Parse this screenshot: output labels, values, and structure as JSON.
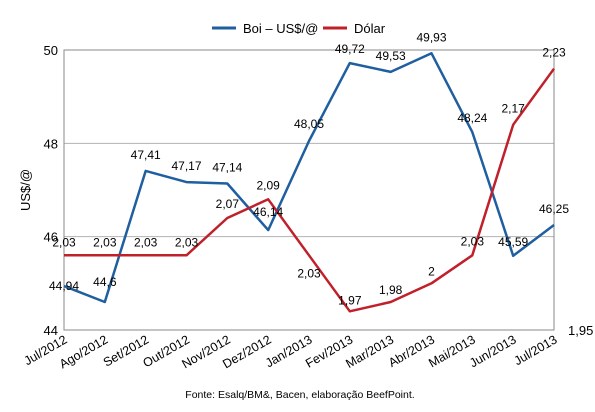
{
  "chart_data": {
    "type": "line",
    "categories": [
      "Jul/2012",
      "Ago/2012",
      "Set/2012",
      "Out/2012",
      "Nov/2012",
      "Dez/2012",
      "Jan/2013",
      "Fev/2013",
      "Mar/2013",
      "Abr/2013",
      "Mai/2013",
      "Jun/2013",
      "Jul/2013"
    ],
    "ylabel": "US$/@",
    "source": "Fonte: Esalq/BM&, Bacen, elaboração BeefPoint.",
    "y_left": {
      "ylim": [
        44,
        50
      ],
      "ticks": [
        "44",
        "46",
        "48",
        "50"
      ]
    },
    "y_right": {
      "ylim": [
        1.95,
        2.25
      ],
      "visible_ticks": [
        "1,95"
      ]
    },
    "grid": true,
    "legend_position": "top-center",
    "series": [
      {
        "name": "Boi – US$/@",
        "axis": "left",
        "color": "#1f5fa0",
        "values": [
          44.94,
          44.6,
          47.41,
          47.17,
          47.14,
          46.14,
          48.05,
          49.72,
          49.53,
          49.93,
          48.24,
          45.59,
          46.25
        ],
        "labels": [
          "44,94",
          "44,6",
          "47,41",
          "47,17",
          "47,14",
          "46,14",
          "48,05",
          "49,72",
          "49,53",
          "49,93",
          "48,24",
          "45,59",
          "46,25"
        ]
      },
      {
        "name": "Dólar",
        "axis": "right",
        "color": "#c0202a",
        "values": [
          2.03,
          2.03,
          2.03,
          2.03,
          2.07,
          2.09,
          2.03,
          1.97,
          1.98,
          2.0,
          2.03,
          2.17,
          2.23
        ],
        "labels": [
          "2,03",
          "2,03",
          "2,03",
          "2,03",
          "2,07",
          "2,09",
          "2,03",
          "1,97",
          "1,98",
          "2",
          "2,03",
          "2,17",
          "2,23"
        ]
      }
    ]
  }
}
